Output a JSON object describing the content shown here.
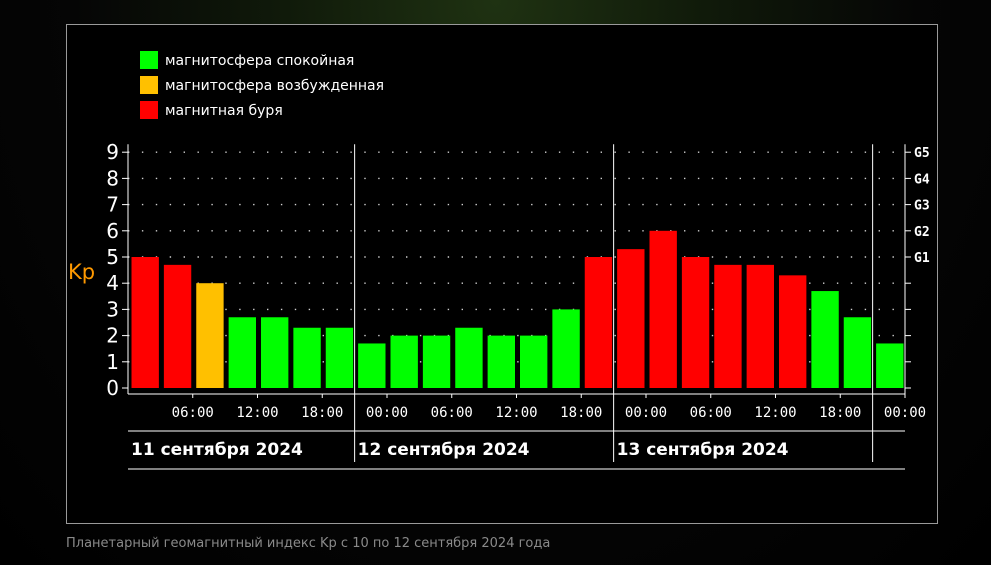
{
  "caption": "Планетарный геомагнитный индекс Kp с 10 по 12 сентября 2024 года",
  "colors": {
    "quiet": "#00ff00",
    "excited": "#ffc000",
    "storm": "#ff0000",
    "axis": "#ffffff",
    "ylabel": "#ff9900"
  },
  "chart_data": {
    "type": "bar",
    "ylabel": "Kp",
    "ylim": [
      0,
      9
    ],
    "yticks": [
      0,
      1,
      2,
      3,
      4,
      5,
      6,
      7,
      8,
      9
    ],
    "g_levels": [
      {
        "kp": 5,
        "label": "G1"
      },
      {
        "kp": 6,
        "label": "G2"
      },
      {
        "kp": 7,
        "label": "G3"
      },
      {
        "kp": 8,
        "label": "G4"
      },
      {
        "kp": 9,
        "label": "G5"
      }
    ],
    "legend": [
      {
        "label": "магнитосфера спокойная",
        "status": "quiet"
      },
      {
        "label": "магнитосфера возбужденная",
        "status": "excited"
      },
      {
        "label": "магнитная буря",
        "status": "storm"
      }
    ],
    "legend_position": "top-left",
    "time_ticks": [
      "06:00",
      "12:00",
      "18:00",
      "00:00",
      "06:00",
      "12:00",
      "18:00",
      "00:00",
      "06:00",
      "12:00",
      "18:00",
      "00:00"
    ],
    "days": [
      "11 сентября 2024",
      "12 сентября 2024",
      "13 сентября 2024"
    ],
    "values": [
      5.0,
      4.7,
      4.0,
      2.7,
      2.7,
      2.3,
      2.3,
      1.7,
      2.0,
      2.0,
      2.3,
      2.0,
      2.0,
      3.0,
      5.0,
      5.3,
      6.0,
      5.0,
      4.7,
      4.7,
      4.3,
      3.7,
      2.7,
      1.7
    ],
    "status": [
      "storm",
      "storm",
      "excited",
      "quiet",
      "quiet",
      "quiet",
      "quiet",
      "quiet",
      "quiet",
      "quiet",
      "quiet",
      "quiet",
      "quiet",
      "quiet",
      "storm",
      "storm",
      "storm",
      "storm",
      "storm",
      "storm",
      "storm",
      "quiet",
      "quiet",
      "quiet"
    ],
    "grid": true
  }
}
